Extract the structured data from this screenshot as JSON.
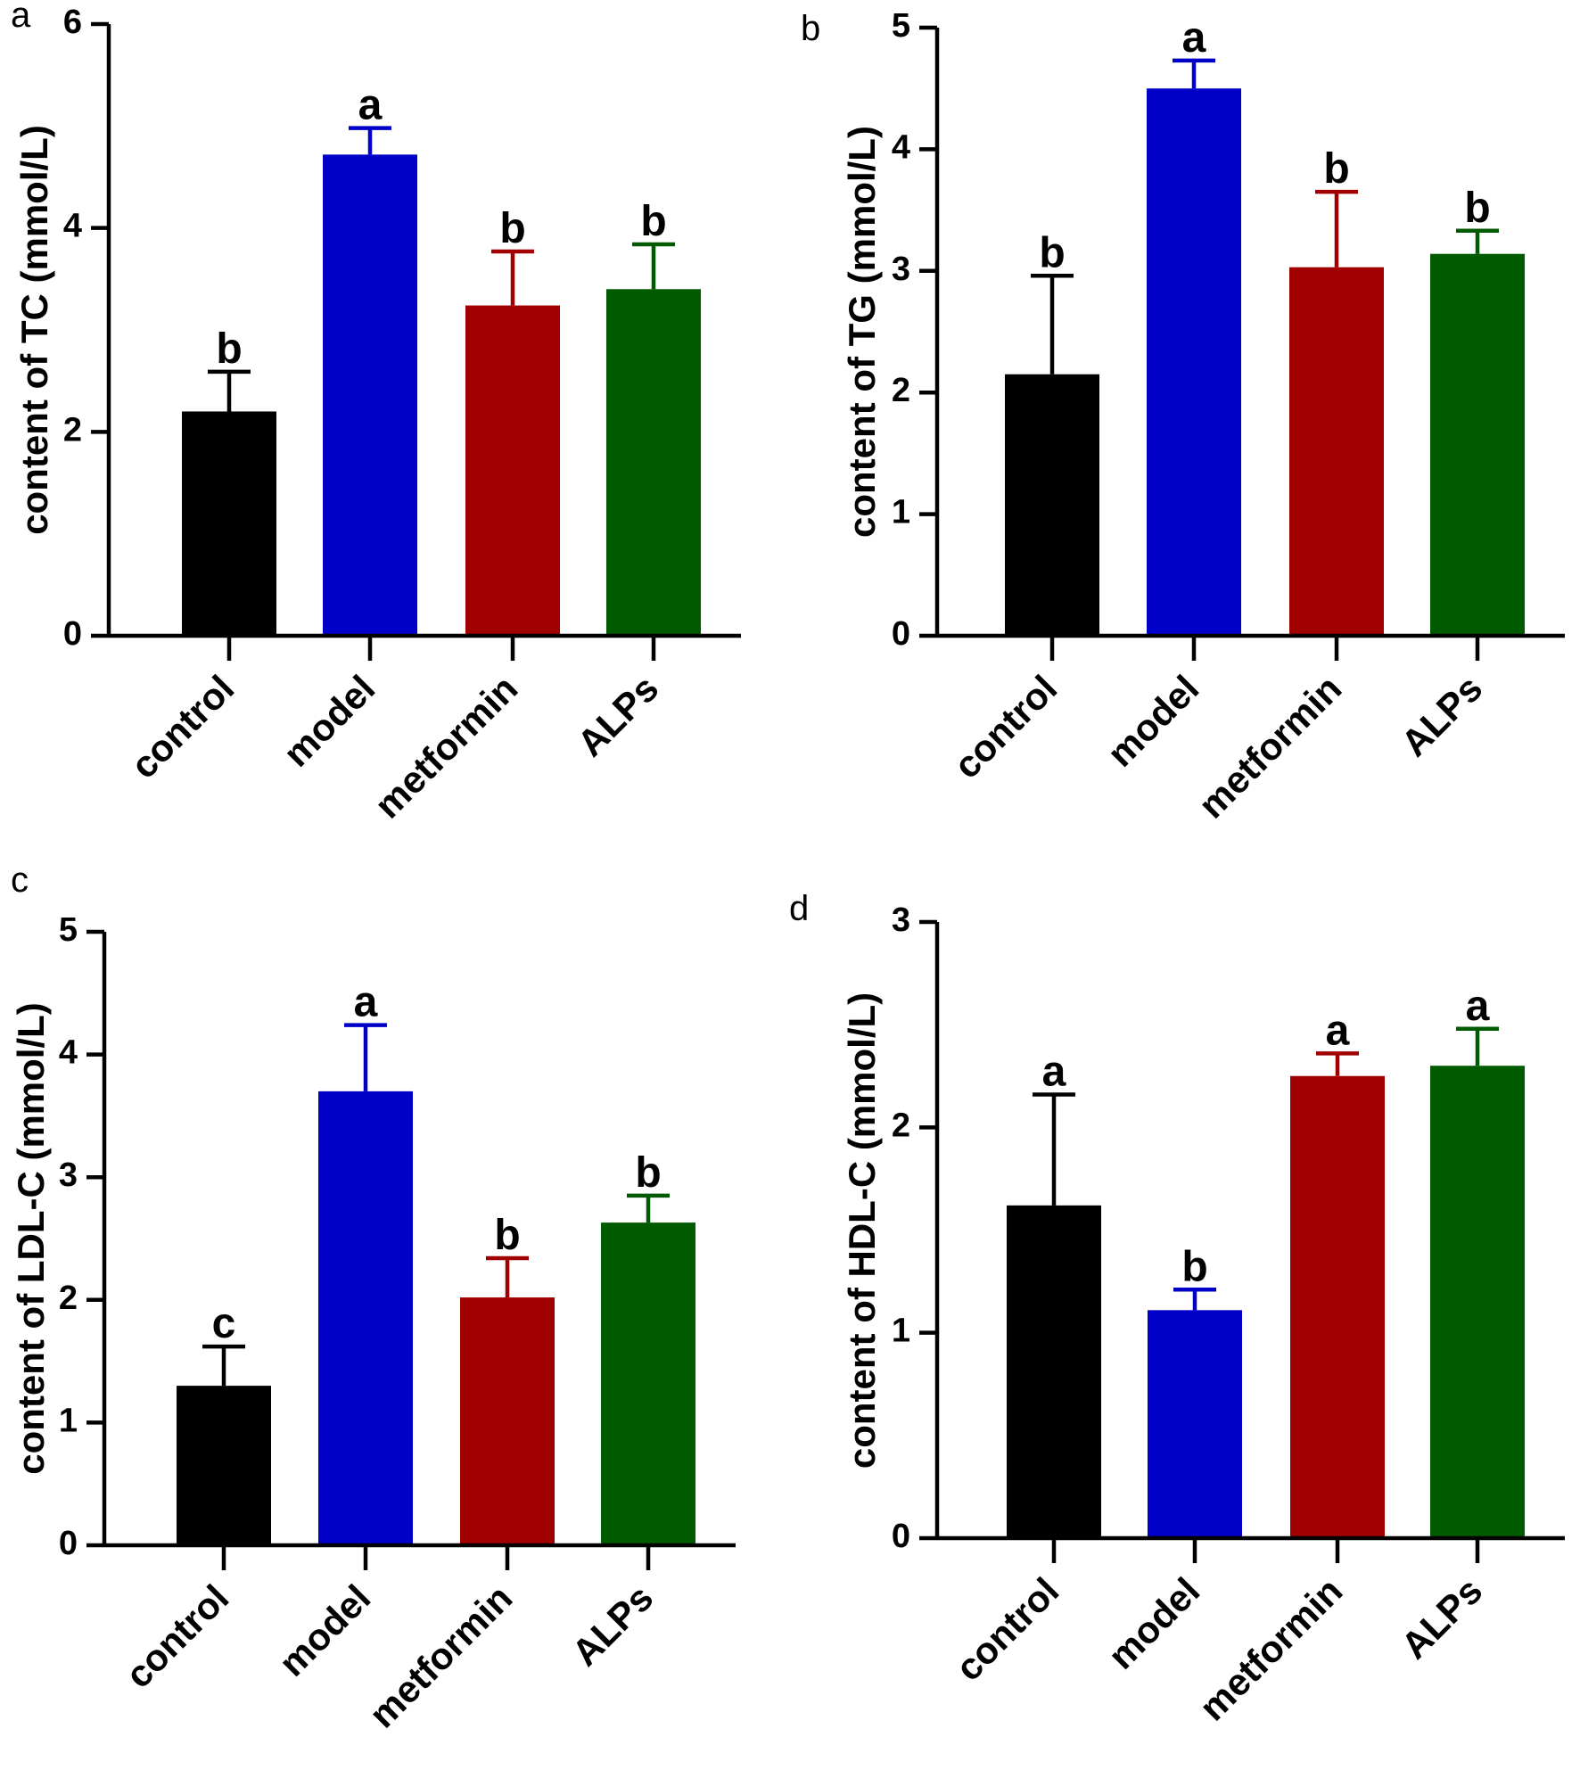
{
  "colors": {
    "control": "#000000",
    "model": "#0000c8",
    "metformin": "#a00000",
    "ALPs": "#005a00"
  },
  "chart_data": [
    {
      "panel": "a",
      "type": "bar",
      "ylabel": "content of TC (mmol/L)",
      "categories": [
        "control",
        "model",
        "metformin",
        "ALPs"
      ],
      "values": [
        2.2,
        4.72,
        3.24,
        3.4
      ],
      "errors": [
        0.39,
        0.26,
        0.53,
        0.44
      ],
      "significance": [
        "b",
        "a",
        "b",
        "b"
      ],
      "ylim": [
        0,
        6
      ],
      "yticks": [
        0,
        2,
        4,
        6
      ],
      "grid": false,
      "legend": "none"
    },
    {
      "panel": "b",
      "type": "bar",
      "ylabel": "content of TG (mmol/L)",
      "categories": [
        "control",
        "model",
        "metformin",
        "ALPs"
      ],
      "values": [
        2.15,
        4.5,
        3.03,
        3.14
      ],
      "errors": [
        0.81,
        0.23,
        0.62,
        0.19
      ],
      "significance": [
        "b",
        "a",
        "b",
        "b"
      ],
      "ylim": [
        0,
        5
      ],
      "yticks": [
        0,
        1,
        2,
        3,
        4,
        5
      ],
      "grid": false,
      "legend": "none"
    },
    {
      "panel": "c",
      "type": "bar",
      "ylabel": "content of LDL-C (mmol/L)",
      "categories": [
        "control",
        "model",
        "metformin",
        "ALPs"
      ],
      "values": [
        1.3,
        3.7,
        2.02,
        2.63
      ],
      "errors": [
        0.32,
        0.54,
        0.32,
        0.22
      ],
      "significance": [
        "c",
        "a",
        "b",
        "b"
      ],
      "ylim": [
        0,
        5
      ],
      "yticks": [
        0,
        1,
        2,
        3,
        4,
        5
      ],
      "grid": false,
      "legend": "none"
    },
    {
      "panel": "d",
      "type": "bar",
      "ylabel": "content of HDL-C (mmol/L)",
      "categories": [
        "control",
        "model",
        "metformin",
        "ALPs"
      ],
      "values": [
        1.62,
        1.11,
        2.25,
        2.3
      ],
      "errors": [
        0.54,
        0.1,
        0.11,
        0.18
      ],
      "significance": [
        "a",
        "b",
        "a",
        "a"
      ],
      "ylim": [
        0,
        3
      ],
      "yticks": [
        0,
        1,
        2,
        3
      ],
      "grid": false,
      "legend": "none"
    }
  ]
}
